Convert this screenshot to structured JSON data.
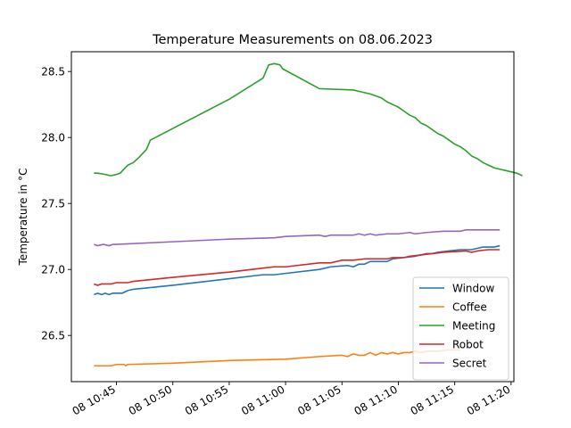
{
  "chart_data": {
    "type": "line",
    "title": "Temperature Measurements on 08.06.2023",
    "xlabel": "",
    "ylabel": "Temperature in °C",
    "xlim": [
      "2023-06-08 10:41:00",
      "2023-06-08 11:20:15"
    ],
    "ylim": [
      26.15,
      28.65
    ],
    "grid": false,
    "legend_position": "lower-right",
    "x_ticks": [
      {
        "time": "2023-06-08 10:45:00",
        "label": "08 10:45"
      },
      {
        "time": "2023-06-08 10:50:00",
        "label": "08 10:50"
      },
      {
        "time": "2023-06-08 10:55:00",
        "label": "08 10:55"
      },
      {
        "time": "2023-06-08 11:00:00",
        "label": "08 11:00"
      },
      {
        "time": "2023-06-08 11:05:00",
        "label": "08 11:05"
      },
      {
        "time": "2023-06-08 11:10:00",
        "label": "08 11:10"
      },
      {
        "time": "2023-06-08 11:15:00",
        "label": "08 11:15"
      },
      {
        "time": "2023-06-08 11:20:00",
        "label": "08 11:20"
      }
    ],
    "y_ticks": [
      {
        "value": 26.5,
        "label": "26.5"
      },
      {
        "value": 27.0,
        "label": "27.0"
      },
      {
        "value": 27.5,
        "label": "27.5"
      },
      {
        "value": 28.0,
        "label": "28.0"
      },
      {
        "value": 28.5,
        "label": "28.5"
      }
    ],
    "series": [
      {
        "name": "Window",
        "color": "#1f77b4",
        "points": [
          [
            "2023-06-08 10:43:00",
            26.81
          ],
          [
            "2023-06-08 10:43:20",
            26.82
          ],
          [
            "2023-06-08 10:43:40",
            26.81
          ],
          [
            "2023-06-08 10:44:00",
            26.82
          ],
          [
            "2023-06-08 10:44:20",
            26.81
          ],
          [
            "2023-06-08 10:44:40",
            26.82
          ],
          [
            "2023-06-08 10:45:30",
            26.82
          ],
          [
            "2023-06-08 10:46:00",
            26.84
          ],
          [
            "2023-06-08 10:46:30",
            26.85
          ],
          [
            "2023-06-08 10:50:00",
            26.88
          ],
          [
            "2023-06-08 10:55:00",
            26.93
          ],
          [
            "2023-06-08 10:58:00",
            26.96
          ],
          [
            "2023-06-08 10:59:00",
            26.96
          ],
          [
            "2023-06-08 11:00:00",
            26.97
          ],
          [
            "2023-06-08 11:03:00",
            27.0
          ],
          [
            "2023-06-08 11:04:00",
            27.02
          ],
          [
            "2023-06-08 11:05:30",
            27.03
          ],
          [
            "2023-06-08 11:06:00",
            27.02
          ],
          [
            "2023-06-08 11:06:30",
            27.04
          ],
          [
            "2023-06-08 11:07:00",
            27.04
          ],
          [
            "2023-06-08 11:07:30",
            27.06
          ],
          [
            "2023-06-08 11:09:00",
            27.06
          ],
          [
            "2023-06-08 11:09:30",
            27.08
          ],
          [
            "2023-06-08 11:10:30",
            27.09
          ],
          [
            "2023-06-08 11:11:30",
            27.1
          ],
          [
            "2023-06-08 11:12:30",
            27.12
          ],
          [
            "2023-06-08 11:13:00",
            27.12
          ],
          [
            "2023-06-08 11:13:30",
            27.13
          ],
          [
            "2023-06-08 11:14:30",
            27.14
          ],
          [
            "2023-06-08 11:15:30",
            27.15
          ],
          [
            "2023-06-08 11:16:30",
            27.15
          ],
          [
            "2023-06-08 11:17:00",
            27.16
          ],
          [
            "2023-06-08 11:17:30",
            27.17
          ],
          [
            "2023-06-08 11:18:30",
            27.17
          ],
          [
            "2023-06-08 11:19:00",
            27.18
          ]
        ]
      },
      {
        "name": "Coffee",
        "color": "#ff7f0e",
        "points": [
          [
            "2023-06-08 10:43:00",
            26.27
          ],
          [
            "2023-06-08 10:44:30",
            26.27
          ],
          [
            "2023-06-08 10:45:00",
            26.28
          ],
          [
            "2023-06-08 10:45:40",
            26.28
          ],
          [
            "2023-06-08 10:45:50",
            26.27
          ],
          [
            "2023-06-08 10:46:00",
            26.28
          ],
          [
            "2023-06-08 10:50:00",
            26.29
          ],
          [
            "2023-06-08 10:55:00",
            26.31
          ],
          [
            "2023-06-08 11:00:00",
            26.32
          ],
          [
            "2023-06-08 11:03:00",
            26.34
          ],
          [
            "2023-06-08 11:05:00",
            26.35
          ],
          [
            "2023-06-08 11:05:30",
            26.34
          ],
          [
            "2023-06-08 11:06:00",
            26.36
          ],
          [
            "2023-06-08 11:06:30",
            26.35
          ],
          [
            "2023-06-08 11:07:00",
            26.35
          ],
          [
            "2023-06-08 11:07:30",
            26.37
          ],
          [
            "2023-06-08 11:08:00",
            26.35
          ],
          [
            "2023-06-08 11:08:30",
            26.37
          ],
          [
            "2023-06-08 11:09:00",
            26.36
          ],
          [
            "2023-06-08 11:09:30",
            26.37
          ],
          [
            "2023-06-08 11:10:00",
            26.36
          ],
          [
            "2023-06-08 11:10:30",
            26.37
          ],
          [
            "2023-06-08 11:11:00",
            26.37
          ],
          [
            "2023-06-08 11:11:30",
            26.38
          ],
          [
            "2023-06-08 11:12:00",
            26.37
          ],
          [
            "2023-06-08 11:12:30",
            26.38
          ],
          [
            "2023-06-08 11:13:30",
            26.38
          ],
          [
            "2023-06-08 11:14:30",
            26.39
          ],
          [
            "2023-06-08 11:15:30",
            26.39
          ]
        ]
      },
      {
        "name": "Meeting",
        "color": "#2ca02c",
        "points": [
          [
            "2023-06-08 10:43:00",
            27.73
          ],
          [
            "2023-06-08 10:43:20",
            27.73
          ],
          [
            "2023-06-08 10:44:00",
            27.72
          ],
          [
            "2023-06-08 10:44:30",
            27.71
          ],
          [
            "2023-06-08 10:45:00",
            27.72
          ],
          [
            "2023-06-08 10:45:20",
            27.73
          ],
          [
            "2023-06-08 10:45:40",
            27.76
          ],
          [
            "2023-06-08 10:46:00",
            27.79
          ],
          [
            "2023-06-08 10:46:30",
            27.81
          ],
          [
            "2023-06-08 10:47:00",
            27.85
          ],
          [
            "2023-06-08 10:47:20",
            27.88
          ],
          [
            "2023-06-08 10:47:40",
            27.91
          ],
          [
            "2023-06-08 10:48:00",
            27.98
          ],
          [
            "2023-06-08 10:55:00",
            28.29
          ],
          [
            "2023-06-08 10:58:00",
            28.45
          ],
          [
            "2023-06-08 10:58:30",
            28.55
          ],
          [
            "2023-06-08 10:59:00",
            28.56
          ],
          [
            "2023-06-08 10:59:30",
            28.55
          ],
          [
            "2023-06-08 10:59:45",
            28.52
          ],
          [
            "2023-06-08 11:03:00",
            28.37
          ],
          [
            "2023-06-08 11:06:00",
            28.36
          ],
          [
            "2023-06-08 11:06:30",
            28.35
          ],
          [
            "2023-06-08 11:07:30",
            28.33
          ],
          [
            "2023-06-08 11:08:30",
            28.3
          ],
          [
            "2023-06-08 11:09:00",
            28.27
          ],
          [
            "2023-06-08 11:09:30",
            28.25
          ],
          [
            "2023-06-08 11:10:00",
            28.23
          ],
          [
            "2023-06-08 11:10:30",
            28.2
          ],
          [
            "2023-06-08 11:11:00",
            28.17
          ],
          [
            "2023-06-08 11:11:30",
            28.15
          ],
          [
            "2023-06-08 11:12:00",
            28.11
          ],
          [
            "2023-06-08 11:12:30",
            28.09
          ],
          [
            "2023-06-08 11:13:00",
            28.06
          ],
          [
            "2023-06-08 11:13:30",
            28.03
          ],
          [
            "2023-06-08 11:14:00",
            28.01
          ],
          [
            "2023-06-08 11:14:30",
            27.98
          ],
          [
            "2023-06-08 11:15:00",
            27.95
          ],
          [
            "2023-06-08 11:15:30",
            27.93
          ],
          [
            "2023-06-08 11:16:00",
            27.9
          ],
          [
            "2023-06-08 11:16:30",
            27.86
          ],
          [
            "2023-06-08 11:17:00",
            27.84
          ],
          [
            "2023-06-08 11:17:30",
            27.81
          ],
          [
            "2023-06-08 11:18:00",
            27.79
          ],
          [
            "2023-06-08 11:18:30",
            27.77
          ],
          [
            "2023-06-08 11:19:00",
            27.76
          ],
          [
            "2023-06-08 11:19:30",
            27.75
          ],
          [
            "2023-06-08 11:20:00",
            27.74
          ],
          [
            "2023-06-08 11:20:30",
            27.73
          ],
          [
            "2023-06-08 11:21:00",
            27.71
          ]
        ]
      },
      {
        "name": "Robot",
        "color": "#d62728",
        "points": [
          [
            "2023-06-08 10:43:00",
            26.89
          ],
          [
            "2023-06-08 10:43:20",
            26.88
          ],
          [
            "2023-06-08 10:43:40",
            26.89
          ],
          [
            "2023-06-08 10:44:30",
            26.89
          ],
          [
            "2023-06-08 10:45:00",
            26.9
          ],
          [
            "2023-06-08 10:46:00",
            26.9
          ],
          [
            "2023-06-08 10:46:30",
            26.91
          ],
          [
            "2023-06-08 10:50:00",
            26.94
          ],
          [
            "2023-06-08 10:55:00",
            26.98
          ],
          [
            "2023-06-08 10:58:00",
            27.01
          ],
          [
            "2023-06-08 10:59:00",
            27.02
          ],
          [
            "2023-06-08 11:00:00",
            27.02
          ],
          [
            "2023-06-08 11:03:00",
            27.05
          ],
          [
            "2023-06-08 11:04:00",
            27.05
          ],
          [
            "2023-06-08 11:05:00",
            27.07
          ],
          [
            "2023-06-08 11:06:00",
            27.07
          ],
          [
            "2023-06-08 11:07:00",
            27.08
          ],
          [
            "2023-06-08 11:09:00",
            27.08
          ],
          [
            "2023-06-08 11:09:30",
            27.09
          ],
          [
            "2023-06-08 11:10:30",
            27.09
          ],
          [
            "2023-06-08 11:11:00",
            27.1
          ],
          [
            "2023-06-08 11:12:00",
            27.11
          ],
          [
            "2023-06-08 11:13:00",
            27.12
          ],
          [
            "2023-06-08 11:14:00",
            27.13
          ],
          [
            "2023-06-08 11:16:00",
            27.14
          ],
          [
            "2023-06-08 11:16:30",
            27.13
          ],
          [
            "2023-06-08 11:17:00",
            27.14
          ],
          [
            "2023-06-08 11:18:00",
            27.15
          ],
          [
            "2023-06-08 11:19:00",
            27.15
          ]
        ]
      },
      {
        "name": "Secret",
        "color": "#9467bd",
        "points": [
          [
            "2023-06-08 10:43:00",
            27.19
          ],
          [
            "2023-06-08 10:43:20",
            27.18
          ],
          [
            "2023-06-08 10:43:50",
            27.19
          ],
          [
            "2023-06-08 10:44:20",
            27.18
          ],
          [
            "2023-06-08 10:44:40",
            27.19
          ],
          [
            "2023-06-08 10:45:00",
            27.19
          ],
          [
            "2023-06-08 10:50:00",
            27.21
          ],
          [
            "2023-06-08 10:55:00",
            27.23
          ],
          [
            "2023-06-08 10:59:00",
            27.24
          ],
          [
            "2023-06-08 11:00:00",
            27.25
          ],
          [
            "2023-06-08 11:03:00",
            27.26
          ],
          [
            "2023-06-08 11:03:30",
            27.25
          ],
          [
            "2023-06-08 11:04:00",
            27.26
          ],
          [
            "2023-06-08 11:06:00",
            27.26
          ],
          [
            "2023-06-08 11:06:30",
            27.27
          ],
          [
            "2023-06-08 11:07:00",
            27.26
          ],
          [
            "2023-06-08 11:07:30",
            27.27
          ],
          [
            "2023-06-08 11:08:00",
            27.26
          ],
          [
            "2023-06-08 11:09:00",
            27.27
          ],
          [
            "2023-06-08 11:10:00",
            27.27
          ],
          [
            "2023-06-08 11:11:00",
            27.28
          ],
          [
            "2023-06-08 11:11:30",
            27.27
          ],
          [
            "2023-06-08 11:12:30",
            27.28
          ],
          [
            "2023-06-08 11:14:00",
            27.29
          ],
          [
            "2023-06-08 11:15:30",
            27.29
          ],
          [
            "2023-06-08 11:16:00",
            27.3
          ],
          [
            "2023-06-08 11:18:00",
            27.3
          ],
          [
            "2023-06-08 11:19:00",
            27.3
          ]
        ]
      }
    ]
  }
}
